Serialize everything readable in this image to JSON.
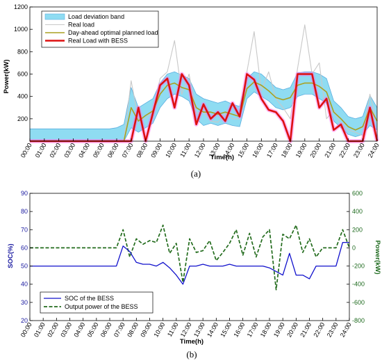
{
  "chart_data": [
    {
      "type": "line",
      "caption": "(a)",
      "xlabel": "Time(h)",
      "ylabel": "Power(kW)",
      "xlim": [
        0,
        24
      ],
      "ylim": [
        0,
        1200
      ],
      "yticks": [
        200,
        400,
        600,
        800,
        1000,
        1200
      ],
      "x_tick_labels": [
        "00:00",
        "01:00",
        "02:00",
        "03:00",
        "04:00",
        "05:00",
        "06:00",
        "07:00",
        "08:00",
        "09:00",
        "10:00",
        "11:00",
        "12:00",
        "13:00",
        "14:00",
        "15:00",
        "16:00",
        "17:00",
        "18:00",
        "19:00",
        "20:00",
        "21:00",
        "22:00",
        "23:00",
        "24:00"
      ],
      "grid": false,
      "legend_position": "top-left",
      "legend": [
        "Load deviation band",
        "Real load",
        "Day-ahead optimal planned load",
        "Real Load with BESS"
      ],
      "colors": {
        "band": "#8fdcf2",
        "band_edge": "#5aaee0",
        "real": "#c8c8c8",
        "planned": "#aaa020",
        "bess": "#dd1010",
        "magenta": "#ff66ee"
      },
      "x": [
        0,
        0.5,
        1,
        1.5,
        2,
        2.5,
        3,
        3.5,
        4,
        4.5,
        5,
        5.5,
        6,
        6.5,
        7,
        7.5,
        8,
        8.5,
        9,
        9.5,
        10,
        10.5,
        11,
        11.5,
        12,
        12.5,
        13,
        13.5,
        14,
        14.5,
        15,
        15.5,
        16,
        16.5,
        17,
        17.5,
        18,
        18.5,
        19,
        19.5,
        20,
        20.5,
        21,
        21.5,
        22,
        22.5,
        23,
        23.5,
        24
      ],
      "series": [
        {
          "name": "Load deviation band",
          "role": "upper",
          "values": [
            110,
            110,
            110,
            110,
            110,
            110,
            110,
            110,
            110,
            110,
            110,
            110,
            120,
            150,
            480,
            300,
            340,
            380,
            520,
            600,
            620,
            590,
            560,
            420,
            380,
            360,
            340,
            360,
            330,
            310,
            560,
            620,
            600,
            540,
            480,
            460,
            480,
            610,
            620,
            620,
            600,
            560,
            360,
            300,
            220,
            200,
            220,
            410,
            300
          ]
        },
        {
          "name": "Load deviation band",
          "role": "lower",
          "values": [
            0,
            0,
            0,
            0,
            0,
            0,
            0,
            0,
            0,
            0,
            0,
            0,
            0,
            0,
            120,
            80,
            120,
            160,
            300,
            380,
            420,
            400,
            360,
            200,
            140,
            160,
            140,
            160,
            140,
            130,
            380,
            440,
            400,
            360,
            300,
            280,
            300,
            400,
            420,
            420,
            380,
            340,
            180,
            120,
            60,
            40,
            60,
            140,
            100
          ]
        },
        {
          "name": "Real load",
          "values": [
            0,
            0,
            0,
            0,
            0,
            0,
            0,
            0,
            0,
            0,
            0,
            0,
            0,
            0,
            540,
            200,
            200,
            280,
            560,
            620,
            900,
            420,
            600,
            250,
            260,
            180,
            170,
            250,
            200,
            200,
            620,
            980,
            450,
            620,
            380,
            300,
            200,
            650,
            1040,
            600,
            700,
            200,
            280,
            150,
            100,
            80,
            50,
            420,
            150
          ]
        },
        {
          "name": "Day-ahead optimal planned load",
          "values": [
            0,
            0,
            0,
            0,
            0,
            0,
            0,
            0,
            0,
            0,
            0,
            0,
            0,
            0,
            300,
            180,
            230,
            270,
            420,
            500,
            520,
            480,
            460,
            300,
            260,
            260,
            240,
            260,
            240,
            220,
            470,
            530,
            500,
            450,
            390,
            370,
            390,
            500,
            520,
            520,
            490,
            440,
            260,
            200,
            130,
            100,
            130,
            300,
            180
          ]
        },
        {
          "name": "Real Load with BESS",
          "values": [
            0,
            0,
            0,
            0,
            0,
            0,
            0,
            0,
            0,
            0,
            0,
            0,
            0,
            0,
            0,
            300,
            0,
            250,
            500,
            560,
            300,
            600,
            500,
            150,
            330,
            200,
            260,
            180,
            340,
            220,
            600,
            550,
            380,
            280,
            260,
            180,
            0,
            600,
            600,
            600,
            300,
            380,
            100,
            150,
            0,
            0,
            0,
            300,
            0
          ]
        }
      ]
    },
    {
      "type": "line",
      "caption": "(b)",
      "xlabel": "Time(h)",
      "ylabel": "SOC(%)",
      "ylabel_right": "Power(kW)",
      "xlim": [
        0,
        24
      ],
      "ylim": [
        20,
        90
      ],
      "ylim_right": [
        -800,
        600
      ],
      "yticks": [
        20,
        30,
        40,
        50,
        60,
        70,
        80,
        90
      ],
      "yticks_right": [
        -800,
        -600,
        -400,
        -200,
        0,
        200,
        400,
        600
      ],
      "x_tick_labels": [
        "00:00",
        "01:00",
        "02:00",
        "03:00",
        "04:00",
        "05:00",
        "06:00",
        "07:00",
        "08:00",
        "09:00",
        "10:00",
        "11:00",
        "12:00",
        "13:00",
        "14:00",
        "15:00",
        "16:00",
        "17:00",
        "18:00",
        "19:00",
        "20:00",
        "21:00",
        "22:00",
        "23:00",
        "24:00"
      ],
      "grid": false,
      "legend_position": "bottom-left",
      "legend": [
        "SOC of the BESS",
        "Output power of the BESS"
      ],
      "colors": {
        "soc": "#1010cc",
        "power": "#226b1c"
      },
      "x": [
        0,
        0.5,
        1,
        1.5,
        2,
        2.5,
        3,
        3.5,
        4,
        4.5,
        5,
        5.5,
        6,
        6.5,
        7,
        7.5,
        8,
        8.5,
        9,
        9.5,
        10,
        10.5,
        11,
        11.5,
        12,
        12.5,
        13,
        13.5,
        14,
        14.5,
        15,
        15.5,
        16,
        16.5,
        17,
        17.5,
        18,
        18.5,
        19,
        19.5,
        20,
        20.5,
        21,
        21.5,
        22,
        22.5,
        23,
        23.5,
        24
      ],
      "series": [
        {
          "name": "SOC of the BESS",
          "axis": "left",
          "values": [
            50,
            50,
            50,
            50,
            50,
            50,
            50,
            50,
            50,
            50,
            50,
            50,
            50,
            50,
            61,
            58,
            52,
            51,
            51,
            50,
            52,
            49,
            45,
            40,
            50,
            50,
            51,
            50,
            50,
            50,
            51,
            50,
            50,
            50,
            50,
            50,
            49,
            47,
            45,
            57,
            45,
            45,
            43,
            50,
            50,
            50,
            50,
            63,
            63
          ]
        },
        {
          "name": "Output power of the BESS",
          "axis": "right",
          "values": [
            0,
            0,
            0,
            0,
            0,
            0,
            0,
            0,
            0,
            0,
            0,
            0,
            0,
            0,
            200,
            -100,
            100,
            40,
            80,
            60,
            250,
            -60,
            50,
            -380,
            100,
            -50,
            -30,
            80,
            -140,
            -50,
            50,
            200,
            -80,
            160,
            -100,
            120,
            200,
            -460,
            150,
            100,
            250,
            -50,
            100,
            -100,
            0,
            0,
            0,
            200,
            0
          ]
        }
      ]
    }
  ]
}
